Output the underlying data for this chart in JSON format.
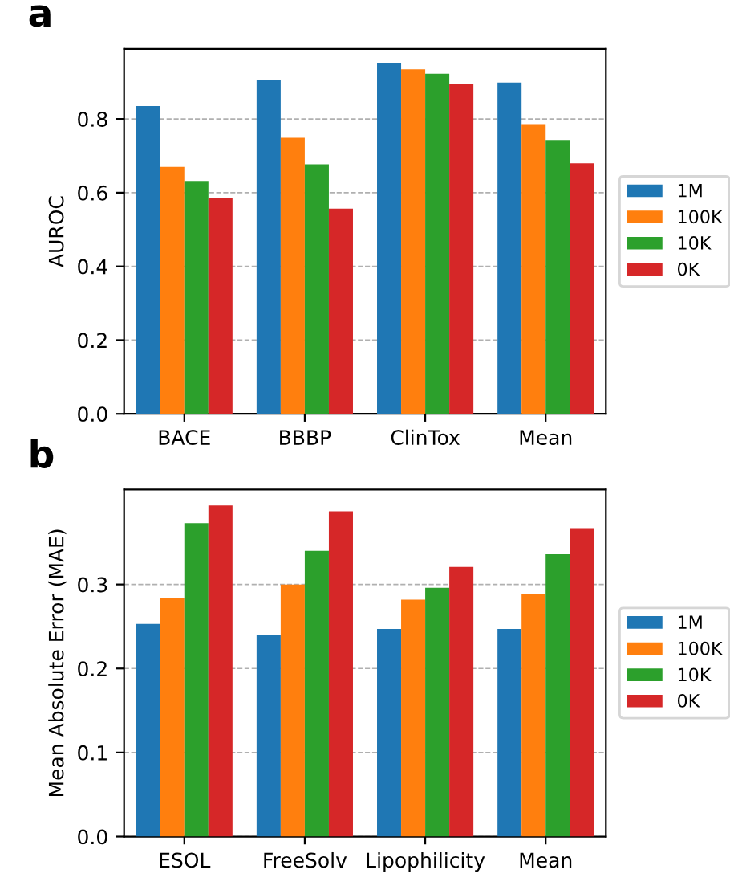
{
  "chart_data": [
    {
      "type": "bar",
      "annotations": [
        "a"
      ],
      "ylabel": "AUROC",
      "categories": [
        "BACE",
        "BBBP",
        "ClinTox",
        "Mean"
      ],
      "series": [
        {
          "name": "1M",
          "color": "#1f77b4",
          "values": [
            0.835,
            0.907,
            0.952,
            0.899
          ]
        },
        {
          "name": "100K",
          "color": "#ff7f0e",
          "values": [
            0.67,
            0.749,
            0.935,
            0.786
          ]
        },
        {
          "name": "10K",
          "color": "#2ca02c",
          "values": [
            0.632,
            0.677,
            0.923,
            0.743
          ]
        },
        {
          "name": "0K",
          "color": "#d62728",
          "values": [
            0.586,
            0.557,
            0.894,
            0.68
          ]
        }
      ],
      "ylim": [
        0,
        0.99
      ],
      "yticks": [
        {
          "value": 0,
          "label": "0.0"
        },
        0.2,
        0.4,
        0.6,
        0.8
      ],
      "grid": "y",
      "legend": "right"
    },
    {
      "type": "bar",
      "annotations": [
        "b"
      ],
      "ylabel": "Mean Absolute Error (MAE)",
      "categories": [
        "ESOL",
        "FreeSolv",
        "Lipophilicity",
        "Mean"
      ],
      "series": [
        {
          "name": "1M",
          "color": "#1f77b4",
          "values": [
            0.253,
            0.24,
            0.247,
            0.247
          ]
        },
        {
          "name": "100K",
          "color": "#ff7f0e",
          "values": [
            0.284,
            0.3,
            0.282,
            0.289
          ]
        },
        {
          "name": "10K",
          "color": "#2ca02c",
          "values": [
            0.373,
            0.34,
            0.296,
            0.336
          ]
        },
        {
          "name": "0K",
          "color": "#d62728",
          "values": [
            0.394,
            0.387,
            0.321,
            0.367
          ]
        }
      ],
      "ylim": [
        0,
        0.413
      ],
      "yticks": [
        {
          "value": 0,
          "label": "0.0"
        },
        0.1,
        0.2,
        0.3
      ],
      "grid": "y",
      "legend": "right"
    }
  ]
}
